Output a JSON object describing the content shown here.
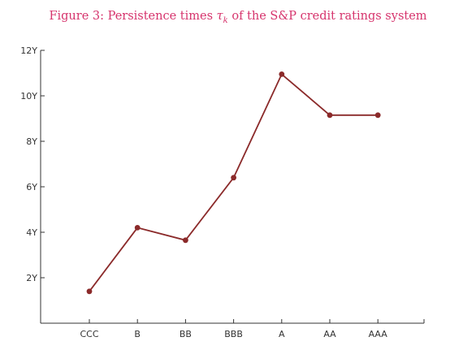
{
  "title": {
    "prefix": "Figure 3: Persistence times ",
    "symbol": "τ",
    "subscript": "k",
    "suffix": " of the S&P credit ratings system"
  },
  "chart_data": {
    "type": "line",
    "title": "Figure 3: Persistence times τk of the S&P credit ratings system",
    "xlabel": "",
    "ylabel": "",
    "categories": [
      "CCC",
      "B",
      "BB",
      "BBB",
      "A",
      "AA",
      "AAA"
    ],
    "series": [
      {
        "values": [
          1.4,
          4.2,
          3.65,
          6.4,
          10.95,
          9.15,
          9.15
        ]
      }
    ],
    "ylim": [
      0,
      12
    ],
    "yticks": [
      2,
      4,
      6,
      8,
      10,
      12
    ],
    "ytick_labels": [
      "2Y",
      "4Y",
      "6Y",
      "8Y",
      "10Y",
      "12Y"
    ],
    "grid": false,
    "line_color": "#8b2a2a",
    "marker_color": "#8b2a2a",
    "title_color": "#d6336c"
  }
}
